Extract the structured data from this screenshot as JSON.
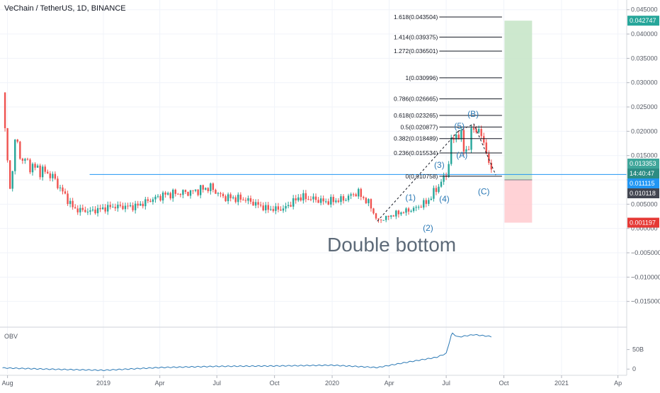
{
  "header": {
    "title": "VeChain / TetherUS, 1D, BINANCE"
  },
  "obv": {
    "label": "OBV",
    "ticks": [
      "50B",
      "0"
    ]
  },
  "annotation": "Double bottom",
  "colors": {
    "up": "#26a69a",
    "down": "#ef5350",
    "hline": "#2196f3",
    "target": "#c8e6c9",
    "stop": "#ffcdd2",
    "obv": "#2b79b5"
  },
  "badges": [
    {
      "label": "0.042747",
      "value": 0.042747,
      "color": "#26a69a"
    },
    {
      "label": "0.013353",
      "value": 0.013353,
      "color": "#3fa69a"
    },
    {
      "label": "14:40:47",
      "value": 0.012,
      "color": "#2c8c83"
    },
    {
      "label": "0.011115",
      "value": 0.011115,
      "color": "#2196f3"
    },
    {
      "label": "0.010118",
      "value": 0.010118,
      "color": "#434651"
    },
    {
      "label": "0.001197",
      "value": 0.001197,
      "color": "#e53935"
    }
  ],
  "chart_data": {
    "type": "candlestick",
    "title": "VeChain / TetherUS, 1D, BINANCE",
    "ylim": [
      -0.02,
      0.047
    ],
    "y_ticks": [
      0.045,
      0.04,
      0.035,
      0.03,
      0.025,
      0.02,
      0.015,
      0.01,
      0.005,
      0.0,
      -0.005,
      -0.01,
      -0.015
    ],
    "y_tick_labels": [
      "0.045000",
      "0.040000",
      "0.035000",
      "0.030000",
      "0.025000",
      "0.020000",
      "0.015000",
      "0.010000",
      "0.005000",
      "0.000000",
      "−0.005000",
      "−0.010000",
      "−0.015000"
    ],
    "x_range": [
      "2018-07-20",
      "2021-04-15"
    ],
    "x_ticks": [
      {
        "label": "Aug",
        "date": "2018-08-01"
      },
      {
        "label": "2019",
        "date": "2019-01-01"
      },
      {
        "label": "Apr",
        "date": "2019-04-01"
      },
      {
        "label": "Jul",
        "date": "2019-07-01"
      },
      {
        "label": "Oct",
        "date": "2019-10-01"
      },
      {
        "label": "2020",
        "date": "2020-01-01"
      },
      {
        "label": "Apr",
        "date": "2020-04-01"
      },
      {
        "label": "Jul",
        "date": "2020-07-01"
      },
      {
        "label": "Oct",
        "date": "2020-10-01"
      },
      {
        "label": "2021",
        "date": "2021-01-01"
      },
      {
        "label": "Ap",
        "date": "2021-04-01"
      }
    ],
    "price_path": [
      [
        "2018-07-24",
        0.028
      ],
      [
        "2018-07-28",
        0.0195
      ],
      [
        "2018-08-01",
        0.014
      ],
      [
        "2018-08-04",
        0.0065
      ],
      [
        "2018-08-10",
        0.0145
      ],
      [
        "2018-08-15",
        0.019
      ],
      [
        "2018-08-20",
        0.015
      ],
      [
        "2018-09-05",
        0.013
      ],
      [
        "2018-10-10",
        0.011
      ],
      [
        "2018-11-15",
        0.004
      ],
      [
        "2018-12-10",
        0.0035
      ],
      [
        "2019-01-15",
        0.0045
      ],
      [
        "2019-02-20",
        0.0045
      ],
      [
        "2019-03-20",
        0.006
      ],
      [
        "2019-04-10",
        0.007
      ],
      [
        "2019-05-20",
        0.0075
      ],
      [
        "2019-06-20",
        0.0085
      ],
      [
        "2019-07-10",
        0.0065
      ],
      [
        "2019-08-15",
        0.006
      ],
      [
        "2019-09-20",
        0.004
      ],
      [
        "2019-10-15",
        0.004
      ],
      [
        "2019-11-10",
        0.0065
      ],
      [
        "2019-12-05",
        0.006
      ],
      [
        "2019-12-20",
        0.0055
      ],
      [
        "2020-01-20",
        0.006
      ],
      [
        "2020-02-10",
        0.0075
      ],
      [
        "2020-03-01",
        0.005
      ],
      [
        "2020-03-13",
        0.0015
      ],
      [
        "2020-04-10",
        0.003
      ],
      [
        "2020-05-10",
        0.004
      ],
      [
        "2020-06-01",
        0.0055
      ],
      [
        "2020-06-20",
        0.009
      ],
      [
        "2020-07-01",
        0.011
      ],
      [
        "2020-07-10",
        0.018
      ],
      [
        "2020-07-20",
        0.02
      ],
      [
        "2020-07-28",
        0.017
      ],
      [
        "2020-08-05",
        0.016
      ],
      [
        "2020-08-14",
        0.0215
      ],
      [
        "2020-08-22",
        0.0195
      ],
      [
        "2020-09-02",
        0.0175
      ],
      [
        "2020-09-08",
        0.011
      ],
      [
        "2020-09-12",
        0.0135
      ]
    ],
    "obv_path": [
      [
        "2018-07-24",
        3
      ],
      [
        "2018-10-01",
        0
      ],
      [
        "2019-01-01",
        -3
      ],
      [
        "2019-04-01",
        4
      ],
      [
        "2019-07-01",
        7
      ],
      [
        "2019-10-01",
        8
      ],
      [
        "2020-01-01",
        10
      ],
      [
        "2020-03-13",
        4
      ],
      [
        "2020-05-01",
        18
      ],
      [
        "2020-06-15",
        30
      ],
      [
        "2020-07-01",
        40
      ],
      [
        "2020-07-10",
        92
      ],
      [
        "2020-07-20",
        82
      ],
      [
        "2020-08-14",
        88
      ],
      [
        "2020-09-12",
        83
      ]
    ],
    "obv_ylim": [
      -5,
      100
    ],
    "fibonacci": {
      "start_date": "2020-06-20",
      "end_date": "2020-09-28",
      "levels": [
        {
          "label": "1.618(0.043504)",
          "value": 0.043504
        },
        {
          "label": "1.414(0.039375)",
          "value": 0.039375
        },
        {
          "label": "1.272(0.036501)",
          "value": 0.036501
        },
        {
          "label": "1(0.030996)",
          "value": 0.030996
        },
        {
          "label": "0.786(0.026665)",
          "value": 0.026665
        },
        {
          "label": "0.618(0.023265)",
          "value": 0.023265
        },
        {
          "label": "0.5(0.020877)",
          "value": 0.020877
        },
        {
          "label": "0.382(0.018489)",
          "value": 0.018489
        },
        {
          "label": "0.236(0.015534)",
          "value": 0.015534
        },
        {
          "label": "0(0.010758)",
          "value": 0.010758
        }
      ]
    },
    "horizontal_line": {
      "value": 0.011115,
      "start_date": "2018-12-10"
    },
    "position": {
      "start_date": "2020-10-02",
      "end_date": "2020-11-15",
      "entry": 0.01,
      "target": 0.042747,
      "stop": 0.001197
    },
    "waves": [
      {
        "label": "(1)",
        "date": "2020-05-05",
        "value": 0.0058
      },
      {
        "label": "(2)",
        "date": "2020-06-02",
        "value": -0.0005
      },
      {
        "label": "(3)",
        "date": "2020-06-20",
        "value": 0.0125
      },
      {
        "label": "(4)",
        "date": "2020-06-28",
        "value": 0.0055
      },
      {
        "label": "(5)",
        "date": "2020-07-22",
        "value": 0.0205
      },
      {
        "label": "(A)",
        "date": "2020-07-26",
        "value": 0.0145
      },
      {
        "label": "(B)",
        "date": "2020-08-13",
        "value": 0.023
      },
      {
        "label": "(C)",
        "date": "2020-08-30",
        "value": 0.007
      }
    ],
    "wave_lines": [
      [
        [
          "2020-03-13",
          0.0015
        ],
        [
          "2020-07-20",
          0.02
        ]
      ],
      [
        [
          "2020-07-20",
          0.02
        ],
        [
          "2020-08-14",
          0.0215
        ],
        [
          "2020-09-18",
          0.011
        ]
      ]
    ]
  }
}
